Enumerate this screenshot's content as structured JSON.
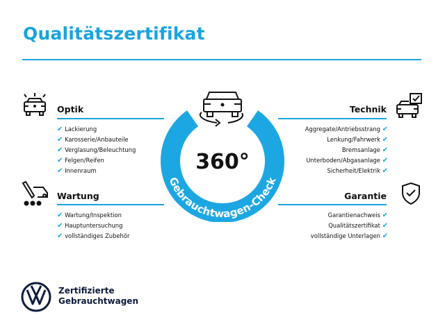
{
  "title": "Qualitätszertifikat",
  "accent": "#1aa3e0",
  "badge": {
    "value": "360°",
    "label": "Gebrauchtwagen-Check"
  },
  "sections": {
    "optik": {
      "title": "Optik",
      "icon": "car-lights-icon",
      "items": [
        "Lackierung",
        "Karosserie/Anbauteile",
        "Verglasung/Beleuchtung",
        "Felgen/Reifen",
        "Innenraum"
      ]
    },
    "wartung": {
      "title": "Wartung",
      "icon": "service-tools-icon",
      "items": [
        "Wartung/Inspektion",
        "Hauptuntersuchung",
        "vollständiges Zubehör"
      ]
    },
    "technik": {
      "title": "Technik",
      "icon": "car-check-icon",
      "items": [
        "Aggregate/Antriebsstrang",
        "Lenkung/Fahrwerk",
        "Bremsanlage",
        "Unterboden/Abgasanlage",
        "Sicherheit/Elektrik"
      ]
    },
    "garantie": {
      "title": "Garantie",
      "icon": "shield-check-icon",
      "items": [
        "Garantienachweis",
        "Qualitätszertifikat",
        "vollständige Unterlagen"
      ]
    }
  },
  "check": "✔",
  "footer": {
    "line1": "Zertifizierte",
    "line2": "Gebrauchtwagen"
  }
}
